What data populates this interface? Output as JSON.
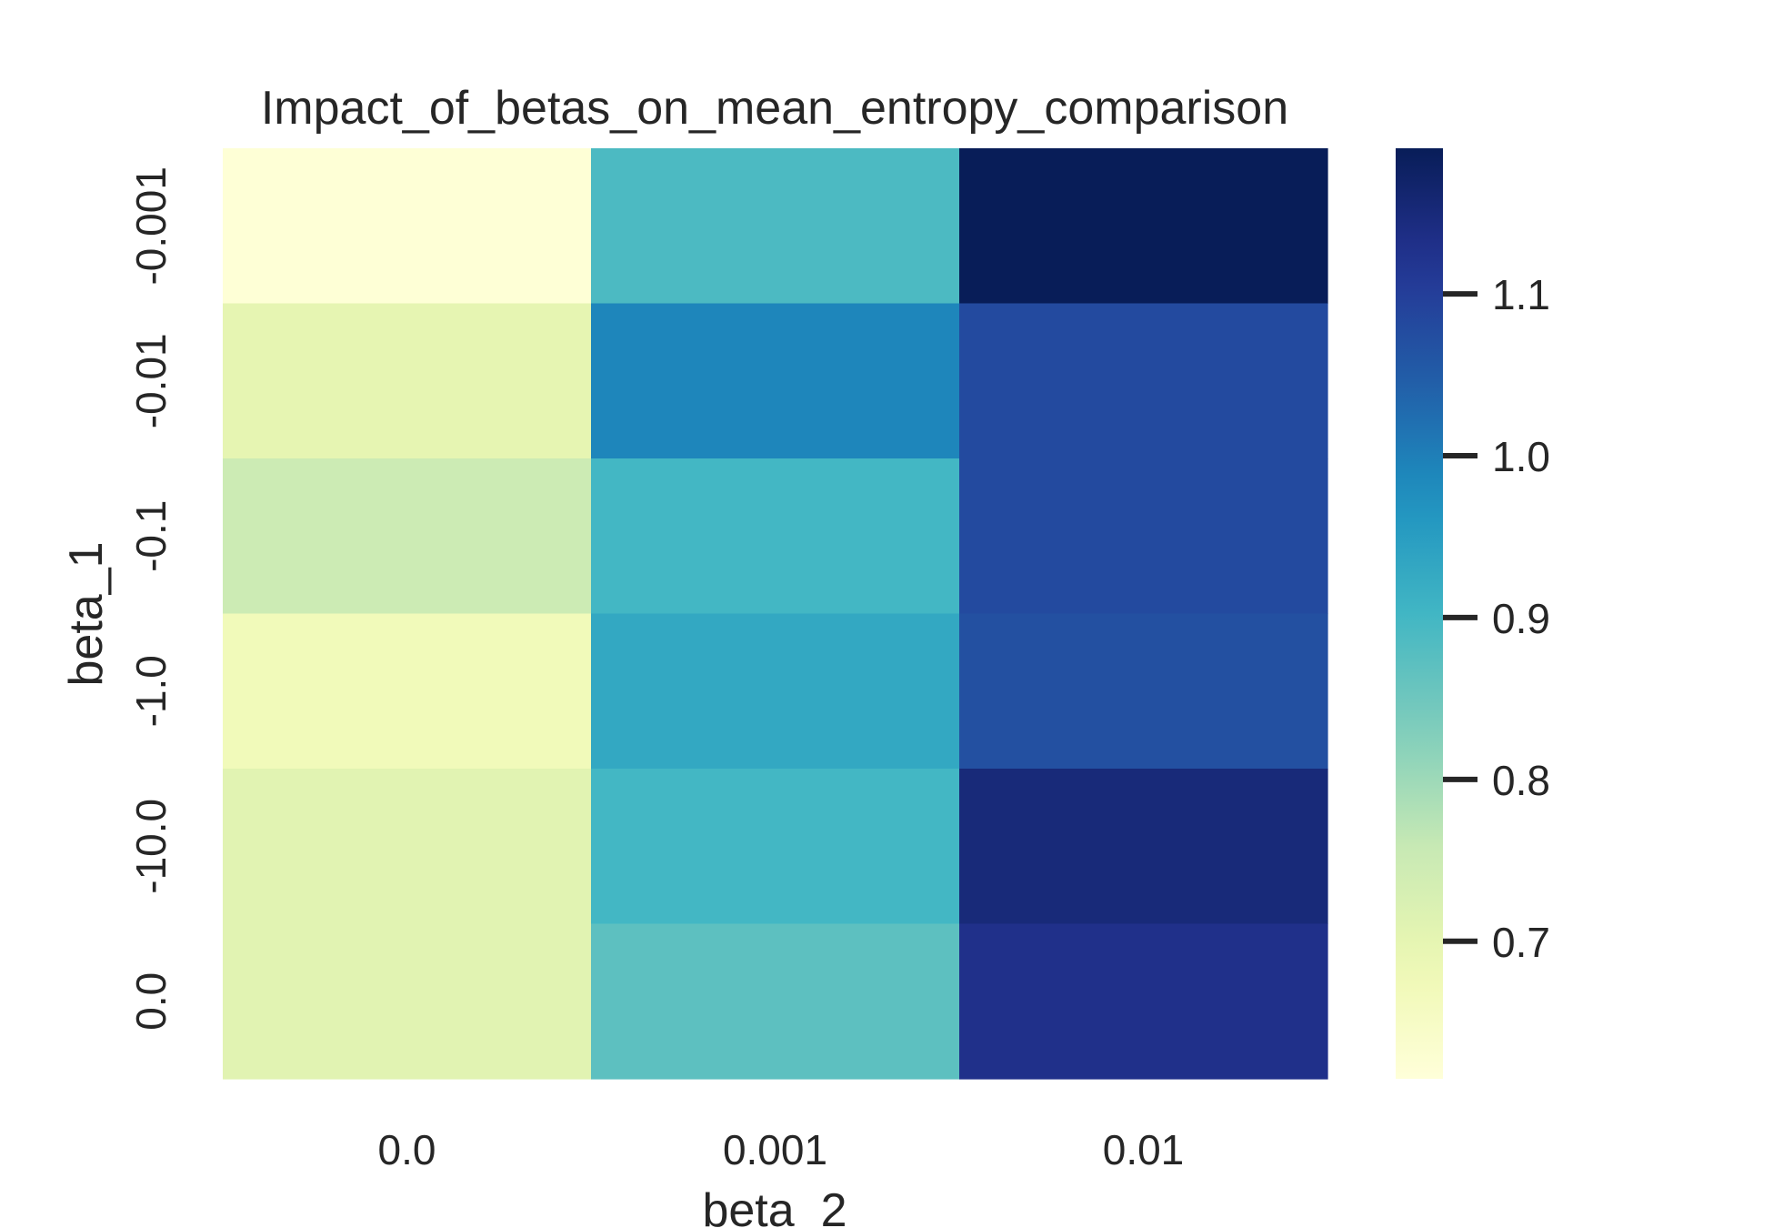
{
  "chart_data": {
    "type": "heatmap",
    "title": "Impact_of_betas_on_mean_entropy_comparison",
    "xlabel": "beta_2",
    "ylabel": "beta_1",
    "x_categories": [
      "0.0",
      "0.001",
      "0.01"
    ],
    "y_categories": [
      "-0.001",
      "-0.01",
      "-0.1",
      "-1.0",
      "-10.0",
      "0.0"
    ],
    "values": [
      [
        0.62,
        0.89,
        1.19
      ],
      [
        0.7,
        0.99,
        1.08
      ],
      [
        0.75,
        0.9,
        1.08
      ],
      [
        0.67,
        0.93,
        1.07
      ],
      [
        0.71,
        0.9,
        1.15
      ],
      [
        0.71,
        0.87,
        1.13
      ]
    ],
    "colorbar": {
      "min": 0.615,
      "max": 1.19,
      "ticks": [
        0.7,
        0.8,
        0.9,
        1.0,
        1.1
      ],
      "tick_labels": [
        "0.7",
        "0.8",
        "0.9",
        "1.0",
        "1.1"
      ],
      "colormap": "YlGnBu"
    }
  }
}
